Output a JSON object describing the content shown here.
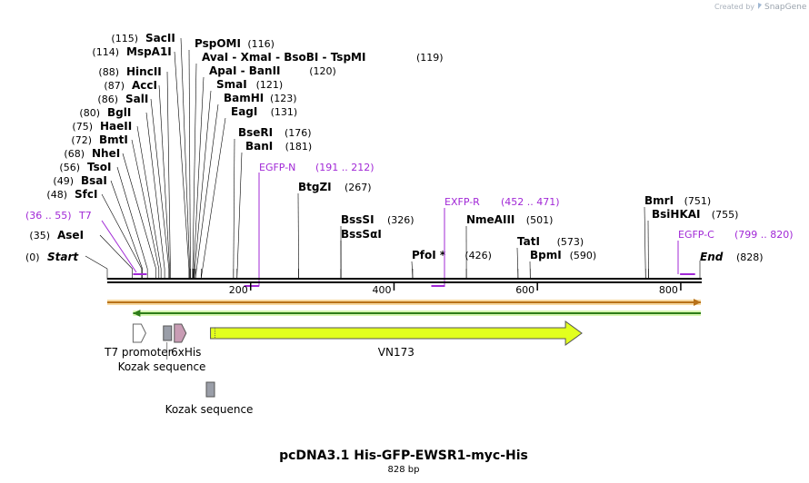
{
  "watermark": {
    "prefix": "Created by",
    "brand": "SnapGene"
  },
  "sequence": {
    "length": 828,
    "name": "pcDNA3.1 His-GFP-EWSR1-myc-His",
    "size_label": "828 bp"
  },
  "ends": {
    "start_label": "Start",
    "start_pos_label": "(0)",
    "end_label": "End",
    "end_pos_label": "(828)"
  },
  "ruler": {
    "ticks": [
      {
        "value": 200,
        "label": "200"
      },
      {
        "value": 400,
        "label": "400"
      },
      {
        "value": 600,
        "label": "600"
      },
      {
        "value": 800,
        "label": "800"
      }
    ]
  },
  "enzymes": [
    {
      "name": "AseI",
      "pos": 35,
      "label": "(35)"
    },
    {
      "name": "SfcI",
      "pos": 48,
      "label": "(48)"
    },
    {
      "name": "BsaI",
      "pos": 49,
      "label": "(49)"
    },
    {
      "name": "TsoI",
      "pos": 56,
      "label": "(56)"
    },
    {
      "name": "NheI",
      "pos": 68,
      "label": "(68)"
    },
    {
      "name": "BmtI",
      "pos": 72,
      "label": "(72)"
    },
    {
      "name": "HaeII",
      "pos": 75,
      "label": "(75)"
    },
    {
      "name": "BglI",
      "pos": 80,
      "label": "(80)"
    },
    {
      "name": "SalI",
      "pos": 86,
      "label": "(86)"
    },
    {
      "name": "AccI",
      "pos": 87,
      "label": "(87)"
    },
    {
      "name": "HincII",
      "pos": 88,
      "label": "(88)"
    },
    {
      "name": "MspA1I",
      "pos": 114,
      "label": "(114)"
    },
    {
      "name": "SacII",
      "pos": 115,
      "label": "(115)"
    },
    {
      "name": "PspOMI",
      "pos": 116,
      "label": "(116)"
    },
    {
      "name": "AvaI  - XmaI  - BsoBI  - TspMI",
      "pos": 119,
      "label": "(119)"
    },
    {
      "name": "ApaI  - BanII",
      "pos": 120,
      "label": "(120)"
    },
    {
      "name": "SmaI",
      "pos": 121,
      "label": "(121)"
    },
    {
      "name": "BamHI",
      "pos": 123,
      "label": "(123)"
    },
    {
      "name": "EagI",
      "pos": 131,
      "label": "(131)"
    },
    {
      "name": "BseRI",
      "pos": 176,
      "label": "(176)"
    },
    {
      "name": "BanI",
      "pos": 181,
      "label": "(181)"
    },
    {
      "name": "BtgZI",
      "pos": 267,
      "label": "(267)"
    },
    {
      "name": "BssSI",
      "pos": 326,
      "label": "(326)"
    },
    {
      "name": "BssSαI",
      "pos": 326,
      "label": ""
    },
    {
      "name": "PfoI *",
      "pos": 426,
      "label": "(426)"
    },
    {
      "name": "NmeAIII",
      "pos": 501,
      "label": "(501)"
    },
    {
      "name": "TatI",
      "pos": 573,
      "label": "(573)"
    },
    {
      "name": "BpmI",
      "pos": 590,
      "label": "(590)"
    },
    {
      "name": "BmrI",
      "pos": 751,
      "label": "(751)"
    },
    {
      "name": "BsiHKAI",
      "pos": 755,
      "label": "(755)"
    }
  ],
  "primers": [
    {
      "name": "T7",
      "range": "(36 .. 55)",
      "start": 36,
      "end": 55
    },
    {
      "name": "EGFP-N",
      "range": "(191 .. 212)",
      "start": 191,
      "end": 212
    },
    {
      "name": "EXFP-R",
      "range": "(452 .. 471)",
      "start": 452,
      "end": 471
    },
    {
      "name": "EGFP-C",
      "range": "(799 .. 820)",
      "start": 799,
      "end": 820
    }
  ],
  "features": [
    {
      "name": "T7 promoter",
      "type": "promoter",
      "start": 36,
      "end": 54,
      "color": "#ffffff"
    },
    {
      "name": "Kozak sequence",
      "type": "misc",
      "start": 72,
      "end": 82,
      "color": "#9a9ea8"
    },
    {
      "name": "6xHis",
      "type": "tag",
      "start": 91,
      "end": 108,
      "color": "#c89cb4"
    },
    {
      "name": "VN173",
      "type": "cds",
      "start": 144,
      "end": 662,
      "color": "#e2ff1e"
    },
    {
      "name": "Kozak sequence",
      "type": "misc",
      "start": 140,
      "end": 150,
      "color": "#9a9ea8"
    }
  ],
  "orf_arrows": [
    {
      "direction": "forward",
      "start": 0,
      "end": 828,
      "color": "#b8721a",
      "fill": "#f7d9a0"
    },
    {
      "direction": "reverse",
      "start": 36,
      "end": 828,
      "color": "#2e7d1a",
      "fill": "#d7f7b0"
    }
  ],
  "colors": {
    "primer": "#a128d6",
    "backbone": "#000000"
  }
}
